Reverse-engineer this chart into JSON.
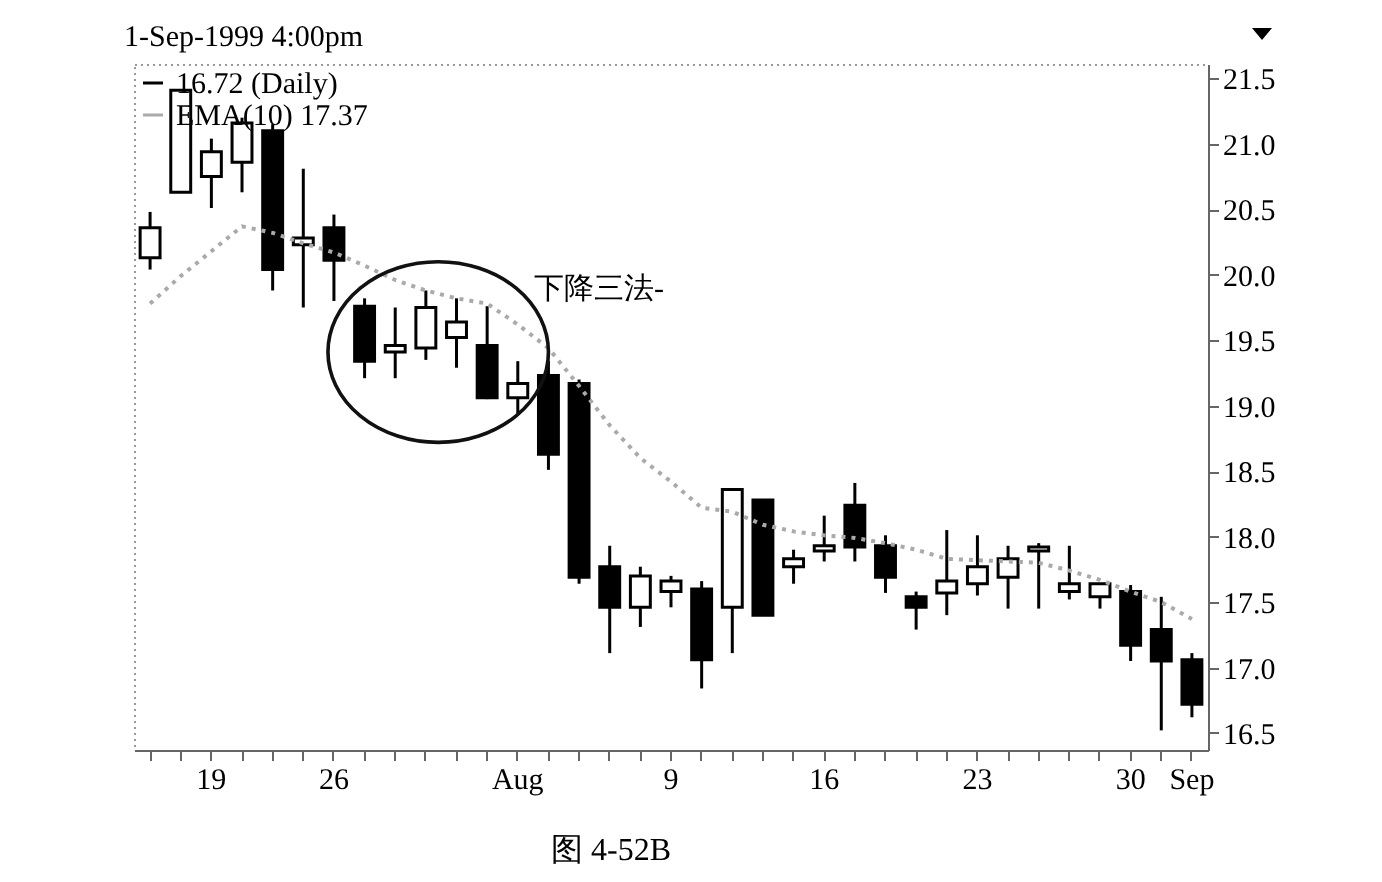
{
  "chart_data": {
    "type": "candlestick",
    "title": "1-Sep-1999 4:00pm",
    "categories": [
      null,
      null,
      "19",
      null,
      null,
      null,
      "26",
      null,
      null,
      null,
      null,
      null,
      "Aug",
      null,
      null,
      null,
      null,
      "9",
      null,
      null,
      null,
      null,
      "16",
      null,
      null,
      null,
      null,
      "23",
      null,
      null,
      null,
      null,
      "30",
      null,
      "Sep"
    ],
    "series": [
      {
        "name": "16.72 (Daily)",
        "color": "#000000",
        "ohlc": [
          [
            20.13,
            20.48,
            20.04,
            20.36
          ],
          [
            20.63,
            21.41,
            20.63,
            21.41
          ],
          [
            20.75,
            21.04,
            20.51,
            20.94
          ],
          [
            20.86,
            21.2,
            20.63,
            21.16
          ],
          [
            21.1,
            21.15,
            19.88,
            20.04
          ],
          [
            20.23,
            20.81,
            19.75,
            20.28
          ],
          [
            20.36,
            20.46,
            19.8,
            20.11
          ],
          [
            19.76,
            19.82,
            19.21,
            19.34
          ],
          [
            19.41,
            19.75,
            19.21,
            19.46
          ],
          [
            19.44,
            19.88,
            19.35,
            19.75
          ],
          [
            19.52,
            19.82,
            19.29,
            19.64
          ],
          [
            19.46,
            19.76,
            19.05,
            19.06
          ],
          [
            19.06,
            19.34,
            18.94,
            19.17
          ],
          [
            19.23,
            19.34,
            18.51,
            18.63
          ],
          [
            19.17,
            19.2,
            17.64,
            17.69
          ],
          [
            17.77,
            17.93,
            17.11,
            17.46
          ],
          [
            17.46,
            17.77,
            17.31,
            17.7
          ],
          [
            17.58,
            17.7,
            17.46,
            17.66
          ],
          [
            17.6,
            17.66,
            16.84,
            17.06
          ],
          [
            17.46,
            18.36,
            17.11,
            18.36
          ],
          [
            18.28,
            18.28,
            17.4,
            17.4
          ],
          [
            17.77,
            17.9,
            17.64,
            17.83
          ],
          [
            17.89,
            18.16,
            17.81,
            17.93
          ],
          [
            18.24,
            18.41,
            17.81,
            17.92
          ],
          [
            17.93,
            18.01,
            17.57,
            17.69
          ],
          [
            17.54,
            17.58,
            17.29,
            17.46
          ],
          [
            17.57,
            18.05,
            17.4,
            17.66
          ],
          [
            17.64,
            18.01,
            17.55,
            17.77
          ],
          [
            17.69,
            17.93,
            17.45,
            17.83
          ],
          [
            17.89,
            17.95,
            17.45,
            17.92
          ],
          [
            17.58,
            17.93,
            17.52,
            17.64
          ],
          [
            17.54,
            17.64,
            17.45,
            17.64
          ],
          [
            17.58,
            17.63,
            17.05,
            17.17
          ],
          [
            17.29,
            17.54,
            16.52,
            17.05
          ],
          [
            17.06,
            17.11,
            16.62,
            16.72
          ]
        ]
      },
      {
        "type": "line",
        "name": "EMA(10) 17.37",
        "color": "#aaaaaa",
        "line_style": "dotted",
        "values": [
          19.78,
          19.99,
          20.18,
          20.37,
          20.32,
          20.24,
          20.17,
          20.07,
          19.96,
          19.88,
          19.82,
          19.78,
          19.62,
          19.44,
          19.15,
          18.85,
          18.6,
          18.42,
          18.22,
          18.19,
          18.09,
          18.04,
          18.01,
          17.99,
          17.95,
          17.9,
          17.83,
          17.82,
          17.81,
          17.8,
          17.74,
          17.67,
          17.58,
          17.5,
          17.37
        ]
      }
    ],
    "ylim": [
      16.37,
      21.61
    ],
    "yticks": [
      16.5,
      {
        "value": 17,
        "label": "17.0"
      },
      17.5,
      {
        "value": 18,
        "label": "18.0"
      },
      18.5,
      {
        "value": 19,
        "label": "19.0"
      },
      19.5,
      {
        "value": 20,
        "label": "20.0"
      },
      20.5,
      {
        "value": 21,
        "label": "21.0"
      },
      21.5
    ],
    "legend": "top left",
    "annotations": [
      "下降三法-",
      "图  4-52B"
    ]
  }
}
